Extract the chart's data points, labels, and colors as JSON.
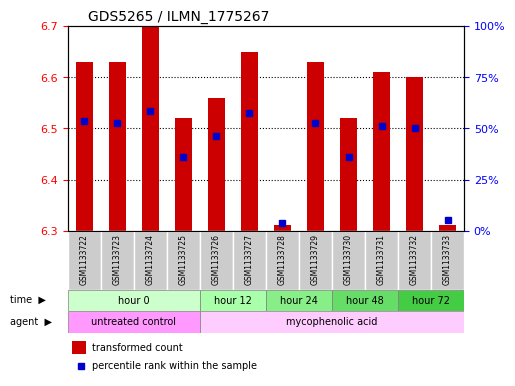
{
  "title": "GDS5265 / ILMN_1775267",
  "samples": [
    "GSM1133722",
    "GSM1133723",
    "GSM1133724",
    "GSM1133725",
    "GSM1133726",
    "GSM1133727",
    "GSM1133728",
    "GSM1133729",
    "GSM1133730",
    "GSM1133731",
    "GSM1133732",
    "GSM1133733"
  ],
  "transformed_counts": [
    6.63,
    6.63,
    6.7,
    6.52,
    6.56,
    6.65,
    6.31,
    6.63,
    6.52,
    6.61,
    6.6,
    6.31
  ],
  "bar_bottom": 6.3,
  "percentile_values": [
    6.515,
    6.51,
    6.535,
    6.445,
    6.485,
    6.53,
    6.315,
    6.51,
    6.445,
    6.505,
    6.5,
    6.32
  ],
  "ylim": [
    6.3,
    6.7
  ],
  "yticks_left": [
    6.3,
    6.4,
    6.5,
    6.6,
    6.7
  ],
  "yticks_right": [
    0,
    25,
    50,
    75,
    100
  ],
  "bar_color": "#CC0000",
  "blue_marker_color": "#0000CC",
  "bg_color": "#FFFFFF",
  "plot_bg": "#FFFFFF",
  "grid_color": "#000000",
  "time_groups": [
    {
      "label": "hour 0",
      "start": 0,
      "end": 4,
      "color": "#CCFFCC"
    },
    {
      "label": "hour 12",
      "start": 4,
      "end": 6,
      "color": "#AAFFAA"
    },
    {
      "label": "hour 24",
      "start": 6,
      "end": 8,
      "color": "#88EE88"
    },
    {
      "label": "hour 48",
      "start": 8,
      "end": 10,
      "color": "#66DD66"
    },
    {
      "label": "hour 72",
      "start": 10,
      "end": 12,
      "color": "#44CC44"
    }
  ],
  "agent_groups": [
    {
      "label": "untreated control",
      "start": 0,
      "end": 4,
      "color": "#FF99FF"
    },
    {
      "label": "mycophenolic acid",
      "start": 4,
      "end": 12,
      "color": "#FFCCFF"
    }
  ],
  "legend_bar_label": "transformed count",
  "legend_marker_label": "percentile rank within the sample",
  "xlabel_time": "time",
  "xlabel_agent": "agent"
}
